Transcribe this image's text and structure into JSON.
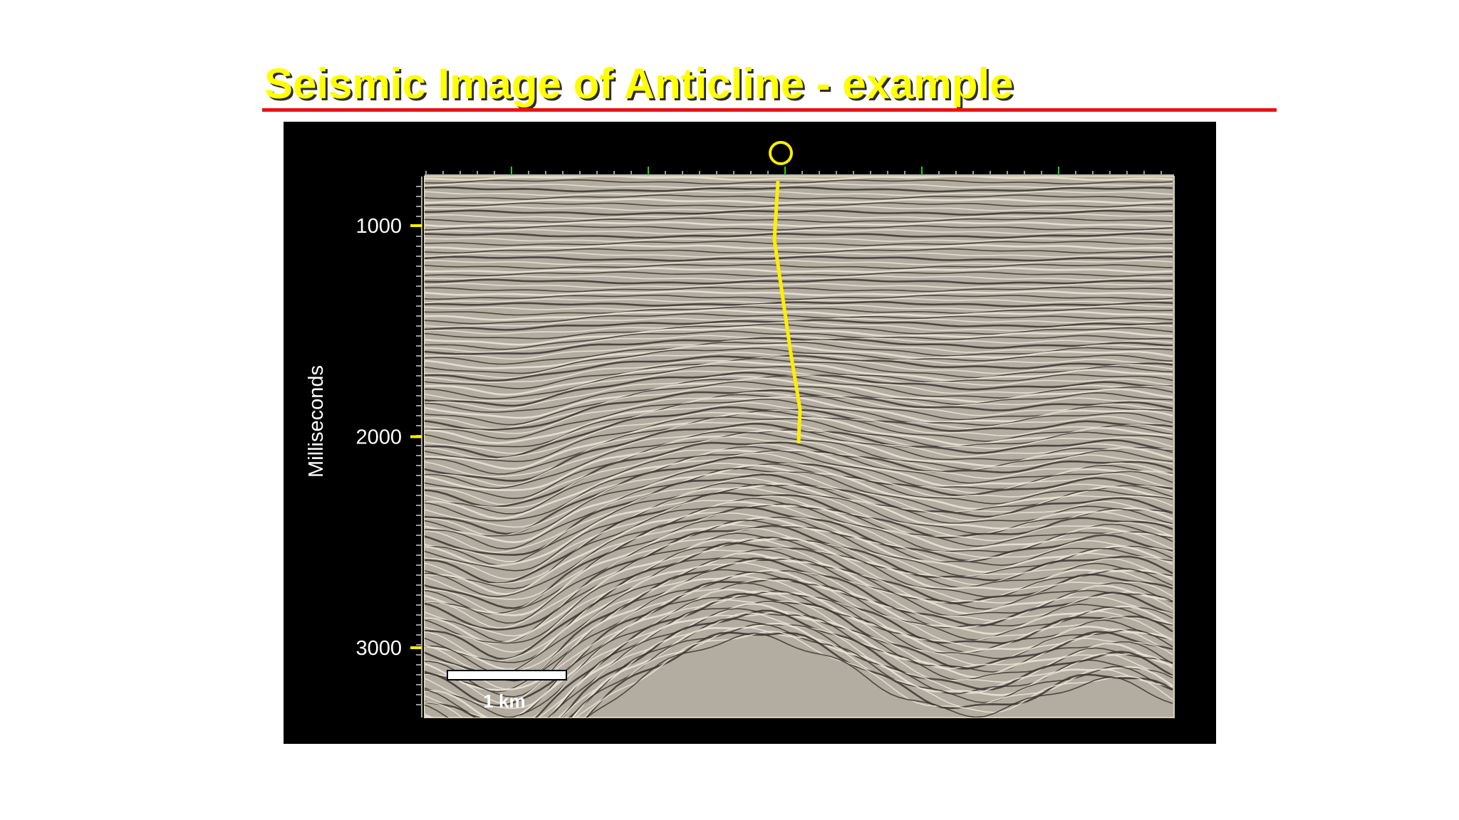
{
  "header": {
    "title": "Seismic Image of Anticline - example"
  },
  "figure": {
    "y_axis_label": "Milliseconds",
    "y_ticks": [
      1000,
      2000,
      3000
    ],
    "scale_bar_label": "1 km"
  }
}
